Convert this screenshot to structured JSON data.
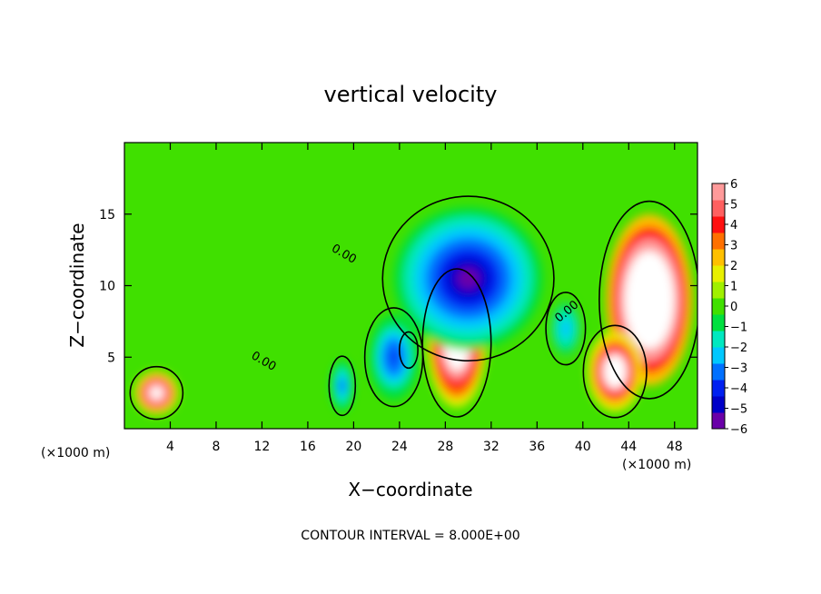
{
  "chart_data": {
    "type": "heatmap",
    "title": "vertical velocity",
    "xlabel": "X−coordinate",
    "ylabel": "Z−coordinate",
    "x_unit_left": "(×1000 m)",
    "x_unit_right": "(×1000 m)",
    "xlim": [
      0,
      50
    ],
    "ylim": [
      0,
      20
    ],
    "x_ticks": [
      4,
      8,
      12,
      16,
      20,
      24,
      28,
      32,
      36,
      40,
      44,
      48
    ],
    "y_ticks": [
      5,
      10,
      15
    ],
    "colorbar": {
      "range": [
        -6,
        6
      ],
      "ticks": [
        6,
        5,
        4,
        3,
        2,
        1,
        0,
        -1,
        -2,
        -3,
        -4,
        -5,
        -6
      ],
      "tick_labels": [
        "6",
        "5",
        "4",
        "3",
        "2",
        "1",
        "0",
        "−1",
        "−2",
        "−3",
        "−4",
        "−5",
        "−6"
      ],
      "colors": [
        "#6a00a8",
        "#0000c8",
        "#0020f0",
        "#0070ff",
        "#00c8ff",
        "#00e8c0",
        "#00e040",
        "#40e000",
        "#a0f000",
        "#e8f000",
        "#ffc000",
        "#ff7000",
        "#ff1010",
        "#ff6060",
        "#ff9a9a"
      ]
    },
    "contour_labels": [
      "0.00",
      "0.00",
      "0.00"
    ],
    "contour_interval_note": "CONTOUR INTERVAL = 8.000E+00",
    "features": [
      {
        "kind": "updraft",
        "x": 45.8,
        "z": 9.0,
        "rx": 3.8,
        "rz": 6.0,
        "value": 14
      },
      {
        "kind": "updraft",
        "x": 42.8,
        "z": 4.0,
        "rx": 2.4,
        "rz": 2.8,
        "value": 9
      },
      {
        "kind": "updraft",
        "x": 2.8,
        "z": 2.5,
        "rx": 2.0,
        "rz": 1.6,
        "value": 8
      },
      {
        "kind": "updraft",
        "x": 24.8,
        "z": 5.5,
        "rx": 0.7,
        "rz": 1.1,
        "value": 6
      },
      {
        "kind": "updraft",
        "x": 29.0,
        "z": 6.0,
        "rx": 2.6,
        "rz": 4.5,
        "value": 10
      },
      {
        "kind": "downdraft",
        "x": 30.0,
        "z": 10.5,
        "rx": 6.5,
        "rz": 5.0,
        "value": -6
      },
      {
        "kind": "downdraft",
        "x": 23.5,
        "z": 5.0,
        "rx": 2.2,
        "rz": 3.0,
        "value": -4
      },
      {
        "kind": "downdraft",
        "x": 19.0,
        "z": 3.0,
        "rx": 1.0,
        "rz": 1.8,
        "value": -3.5
      },
      {
        "kind": "downdraft",
        "x": 38.5,
        "z": 7.0,
        "rx": 1.5,
        "rz": 2.2,
        "value": -2.5
      }
    ]
  }
}
